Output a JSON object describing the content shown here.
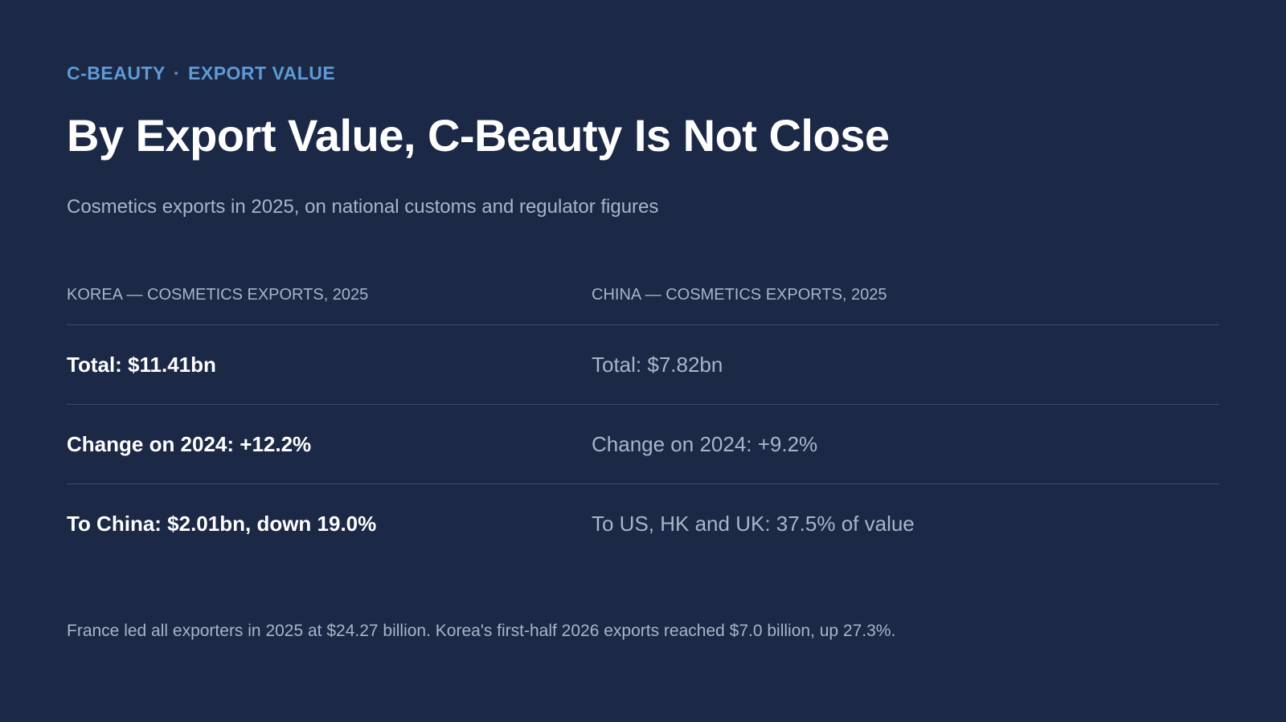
{
  "header": {
    "kicker_left": "C-BEAUTY",
    "kicker_separator": "·",
    "kicker_right": "EXPORT VALUE",
    "title": "By Export Value, C-Beauty Is Not Close",
    "subtitle": "Cosmetics exports in 2025, on national customs and regulator figures"
  },
  "table": {
    "headers": [
      "KOREA — COSMETICS EXPORTS, 2025",
      "CHINA — COSMETICS EXPORTS, 2025"
    ],
    "rows": [
      [
        "Total: $11.41bn",
        "Total: $7.82bn"
      ],
      [
        "Change on 2024: +12.2%",
        "Change on 2024: +9.2%"
      ],
      [
        "To China: $2.01bn, down 19.0%",
        "To US, HK and UK: 37.5% of value"
      ]
    ]
  },
  "footnote": "France led all exporters in 2025 at $24.27 billion. Korea's first-half 2026 exports reached $7.0 billion, up 27.3%.",
  "colors": {
    "background": "#1b2846",
    "accent": "#5e9bd6",
    "muted_text": "#a9b5c8",
    "divider": "#3e4d6b"
  }
}
